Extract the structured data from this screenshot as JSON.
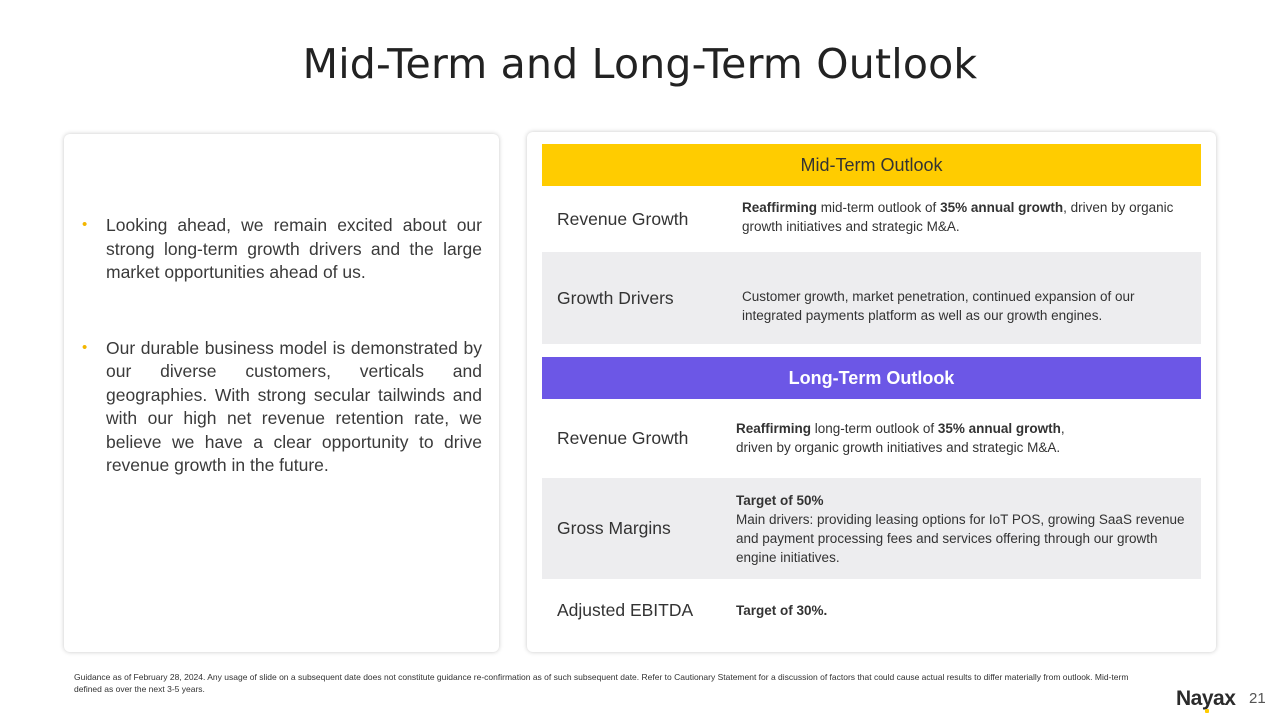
{
  "title": "Mid-Term and Long-Term Outlook",
  "left_panel": {
    "bullets": [
      "Looking ahead, we remain excited about our strong long-term growth drivers and the large market opportunities ahead of us.",
      "Our durable business model is demonstrated by our diverse customers, verticals and geographies. With strong secular tailwinds and with our high net revenue retention rate, we believe we have a clear opportunity to drive revenue growth in the future."
    ]
  },
  "mid_term": {
    "header": "Mid-Term Outlook",
    "revenue_growth": {
      "label": "Revenue Growth",
      "lead": "Reaffirming",
      "middle": " mid-term outlook of ",
      "highlight": "35% annual growth",
      "tail": ", driven by organic growth initiatives and strategic M&A."
    },
    "growth_drivers": {
      "label": "Growth Drivers",
      "text": "Customer growth, market penetration, continued expansion of our integrated payments platform as well as our growth engines."
    }
  },
  "long_term": {
    "header": "Long-Term Outlook",
    "revenue_growth": {
      "label": "Revenue Growth",
      "lead": "Reaffirming",
      "middle": " long-term outlook of ",
      "highlight": "35% annual growth",
      "tail": ",",
      "line2": "driven by organic growth initiatives and strategic M&A."
    },
    "gross_margins": {
      "label": "Gross Margins",
      "target": "Target of 50%",
      "text": "Main drivers: providing leasing options for IoT POS, growing SaaS revenue and payment processing fees and services offering through our growth engine initiatives."
    },
    "adjusted_ebitda": {
      "label": "Adjusted EBITDA",
      "target": "Target of 30%."
    }
  },
  "footnote": "Guidance as of February 28, 2024. Any usage of slide on a subsequent date does not constitute guidance re-confirmation as of such subsequent date. Refer to Cautionary Statement for a discussion of factors that could cause actual results to differ materially from outlook. Mid-term defined as over the next 3-5 years.",
  "logo": {
    "pre": "Na",
    "accent": "y",
    "post": "ax"
  },
  "page_number": "21",
  "colors": {
    "mid_header": "#ffcc00",
    "long_header": "#6c57e6",
    "bullet": "#f3b600",
    "row_shade": "#ededef"
  }
}
